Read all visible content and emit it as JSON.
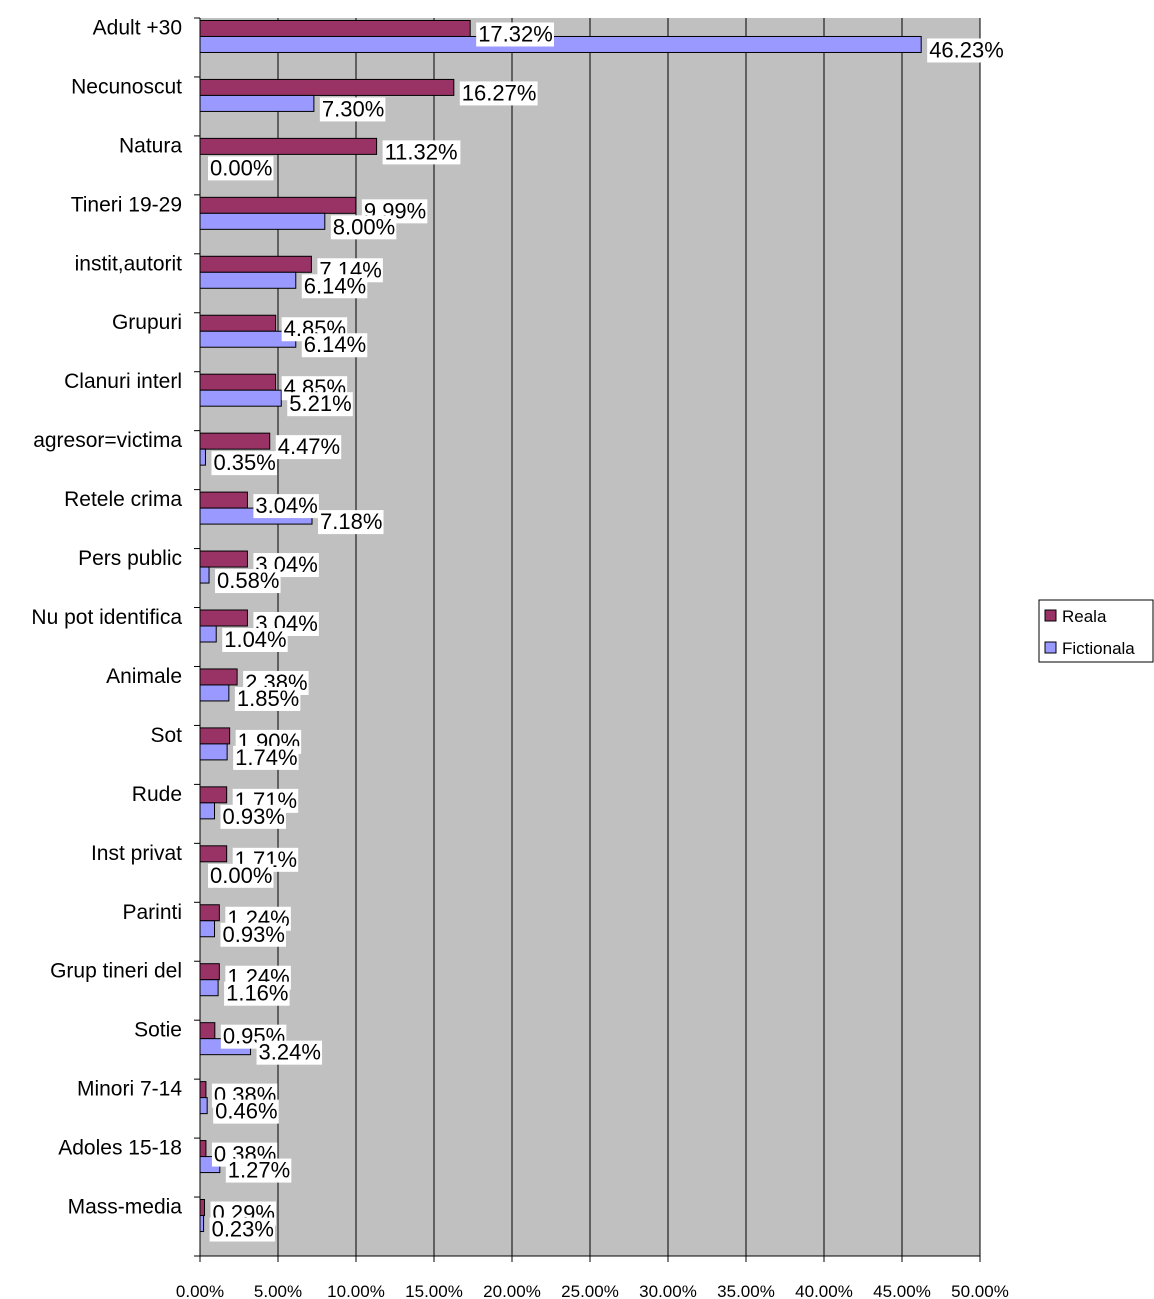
{
  "chart_data": {
    "type": "bar",
    "orientation": "horizontal",
    "categories": [
      "Adult +30",
      "Necunoscut",
      "Natura",
      "Tineri 19-29",
      "instit,autorit",
      "Grupuri",
      "Clanuri interl",
      "agresor=victima",
      "Retele crima",
      "Pers public",
      "Nu pot identifica",
      "Animale",
      "Sot",
      "Rude",
      "Inst privat",
      "Parinti",
      "Grup  tineri del",
      "Sotie",
      "Minori 7-14",
      "Adoles 15-18",
      "Mass-media"
    ],
    "series": [
      {
        "name": "Reala",
        "color": "#993366",
        "values": [
          17.32,
          16.27,
          11.32,
          9.99,
          7.14,
          4.85,
          4.85,
          4.47,
          3.04,
          3.04,
          3.04,
          2.38,
          1.9,
          1.71,
          1.71,
          1.24,
          1.24,
          0.95,
          0.38,
          0.38,
          0.29
        ],
        "labels": [
          "17.32%",
          "16.27%",
          "11.32%",
          "9.99%",
          "7.14%",
          "4.85%",
          "4.85%",
          "4.47%",
          "3.04%",
          "3.04%",
          "3.04%",
          "2.38%",
          "1.90%",
          "1.71%",
          "1.71%",
          "1.24%",
          "1.24%",
          "0.95%",
          "0.38%",
          "0.38%",
          "0.29%"
        ]
      },
      {
        "name": "Fictionala",
        "color": "#9999ff",
        "values": [
          46.23,
          7.3,
          0.0,
          8.0,
          6.14,
          6.14,
          5.21,
          0.35,
          7.18,
          0.58,
          1.04,
          1.85,
          1.74,
          0.93,
          0.0,
          0.93,
          1.16,
          3.24,
          0.46,
          1.27,
          0.23
        ],
        "labels": [
          "46.23%",
          "7.30%",
          "0.00%",
          "8.00%",
          "6.14%",
          "6.14%",
          "5.21%",
          "0.35%",
          "7.18%",
          "0.58%",
          "1.04%",
          "1.85%",
          "1.74%",
          "0.93%",
          "0.00%",
          "0.93%",
          "1.16%",
          "3.24%",
          "0.46%",
          "1.27%",
          "0.23%"
        ]
      }
    ],
    "xlim": [
      0,
      50
    ],
    "xticks": [
      0,
      5,
      10,
      15,
      20,
      25,
      30,
      35,
      40,
      45,
      50
    ],
    "xtick_labels": [
      "0.00%",
      "5.00%",
      "10.00%",
      "15.00%",
      "20.00%",
      "25.00%",
      "30.00%",
      "35.00%",
      "40.00%",
      "45.00%",
      "50.00%"
    ],
    "grid": true,
    "plot_background": "#c0c0c0",
    "legend": "right"
  }
}
